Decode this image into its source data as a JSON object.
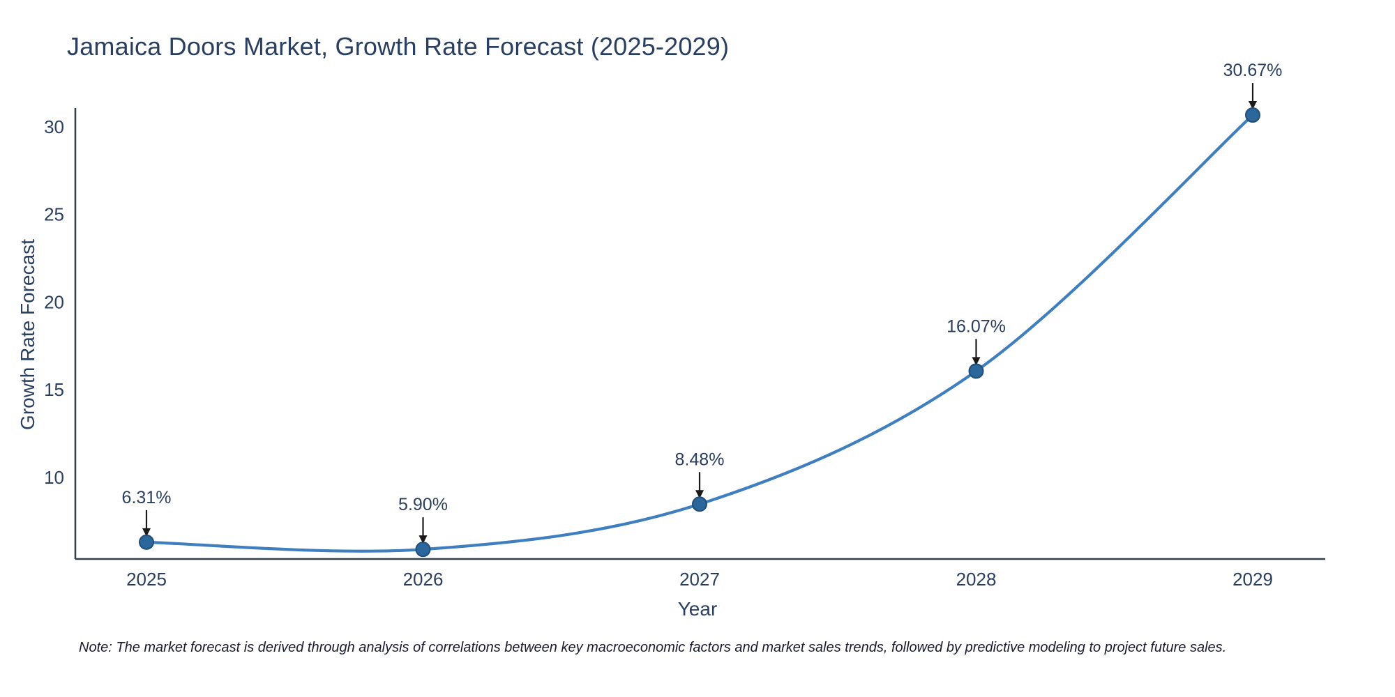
{
  "title": "Jamaica Doors Market, Growth Rate Forecast (2025-2029)",
  "footnote": "Note: The market forecast is derived through analysis of correlations between key macroeconomic factors and market sales trends, followed by predictive modeling to project future sales.",
  "chart_data": {
    "type": "line",
    "title": "Jamaica Doors Market, Growth Rate Forecast (2025-2029)",
    "xlabel": "Year",
    "ylabel": "Growth Rate Forecast",
    "x": [
      2025,
      2026,
      2027,
      2028,
      2029
    ],
    "categories": [
      "2025",
      "2026",
      "2027",
      "2028",
      "2029"
    ],
    "values": [
      6.31,
      5.9,
      8.48,
      16.07,
      30.67
    ],
    "point_labels": [
      "6.31%",
      "5.90%",
      "8.48%",
      "16.07%",
      "30.67%"
    ],
    "yticks": [
      10,
      15,
      20,
      25,
      30
    ],
    "ylim": [
      5.35,
      31.07
    ],
    "grid": false,
    "legend": "none",
    "line_color": "#3f7fbf",
    "marker_color": "#2c679c",
    "marker_stroke": "#1f4e79",
    "axis_color": "#30404f",
    "text_color": "#2a3f5f",
    "annotation_color": "#1a1a1a"
  }
}
